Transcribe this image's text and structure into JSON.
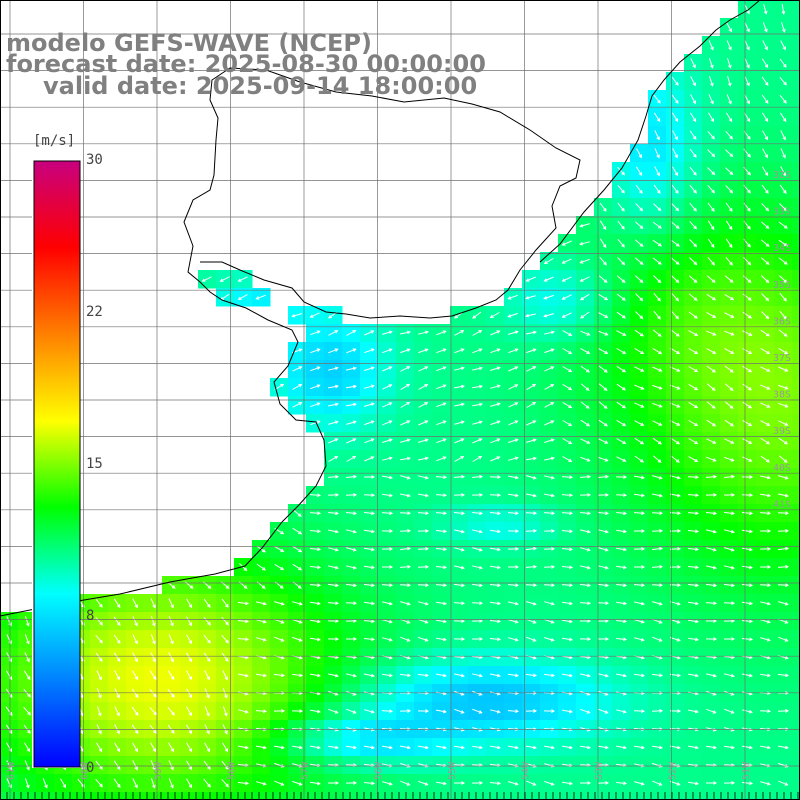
{
  "title": {
    "line1": "modelo GEFS-WAVE (NCEP)",
    "line2": "forecast date: 2025-08-30 00:00:00",
    "line3": "valid date: 2025-09-14 18:00:00"
  },
  "colorbar": {
    "unit_label": "[m/s]",
    "ticks": [
      {
        "label": "30",
        "value": 30
      },
      {
        "label": "22",
        "value": 22
      },
      {
        "label": "15",
        "value": 15
      },
      {
        "label": "8",
        "value": 8
      },
      {
        "label": "0",
        "value": 0
      }
    ],
    "colors": [
      "#0000ff",
      "#0080ff",
      "#00ffff",
      "#00ff00",
      "#ffff00",
      "#ff8000",
      "#ff0000",
      "#c8007f"
    ]
  },
  "lat_labels": [
    "32S",
    "33S",
    "34S",
    "35S",
    "36S",
    "37S",
    "38S",
    "39S",
    "40S",
    "41S"
  ],
  "lon_labels": [
    "61W",
    "60W",
    "59W",
    "58W",
    "57W",
    "56W",
    "55W",
    "54W",
    "53W",
    "52W",
    "51W"
  ]
}
